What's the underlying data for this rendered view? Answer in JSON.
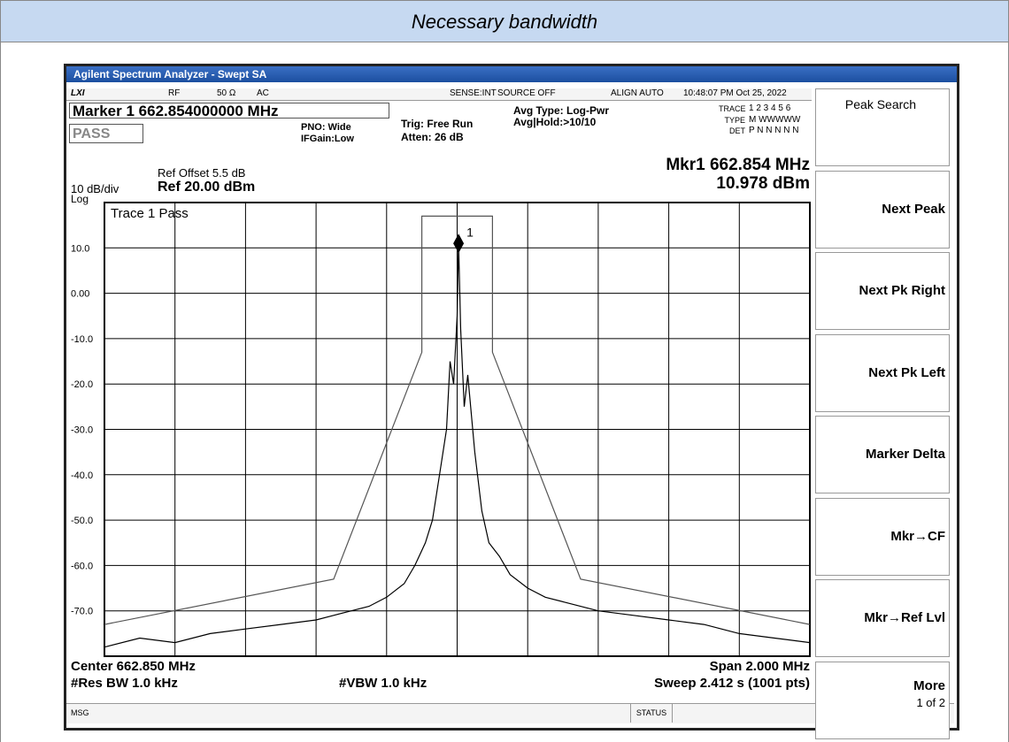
{
  "header": {
    "title": "Necessary bandwidth"
  },
  "screen": {
    "window_title": "Agilent Spectrum Analyzer - Swept SA",
    "status": [
      "LXI",
      "RF",
      "50 Ω",
      "AC",
      "SENSE:INT",
      "SOURCE OFF",
      "ALIGN AUTO",
      "10:48:07 PM Oct 25, 2022"
    ],
    "marker_line": "Marker 1 662.854000000 MHz",
    "pass": "PASS",
    "pno": "PNO: Wide",
    "ifgain": "IFGain:Low",
    "trig": "Trig: Free Run",
    "atten": "Atten: 26 dB",
    "avg_type": "Avg Type: Log-Pwr",
    "avg_hold": "Avg|Hold:>10/10",
    "trace_label": "TRACE",
    "trace_nums": "1 2 3 4 5 6",
    "type_label": "TYPE",
    "type_vals": "M WWWWW",
    "det_label": "DET",
    "det_vals": "P N N N N N",
    "ref_offset": "Ref Offset 5.5 dB",
    "scale": "10 dB/div",
    "ref": "Ref 20.00 dBm",
    "log": "Log",
    "mkr_freq": "Mkr1 662.854 MHz",
    "mkr_amp": "10.978 dBm",
    "trace_pass": "Trace 1 Pass",
    "center": "Center 662.850 MHz",
    "span": "Span 2.000 MHz",
    "rbw": "#Res BW 1.0 kHz",
    "vbw": "#VBW 1.0 kHz",
    "sweep": "Sweep  2.412 s (1001 pts)",
    "msg": "MSG",
    "status_label": "STATUS"
  },
  "softkeys": [
    "Peak Search",
    "Next Peak",
    "Next Pk Right",
    "Next Pk Left",
    "Marker Delta",
    "Mkr→CF",
    "Mkr→Ref Lvl",
    "More"
  ],
  "softkey_page": "1 of 2",
  "chart_data": {
    "type": "line",
    "xlim": [
      661.85,
      663.85
    ],
    "ylim": [
      -80,
      20
    ],
    "xticks": [
      661.85,
      662.05,
      662.25,
      662.45,
      662.65,
      662.85,
      663.05,
      663.25,
      663.45,
      663.65,
      663.85
    ],
    "yticks": [
      {
        "value": 10,
        "label": "10.0"
      },
      {
        "value": 0,
        "label": "0.00"
      },
      {
        "value": -10,
        "label": "-10.0"
      },
      {
        "value": -20,
        "label": "-20.0"
      },
      {
        "value": -30,
        "label": "-30.0"
      },
      {
        "value": -40,
        "label": "-40.0"
      },
      {
        "value": -50,
        "label": "-50.0"
      },
      {
        "value": -60,
        "label": "-60.0"
      },
      {
        "value": -70,
        "label": "-70.0"
      }
    ],
    "grid": true,
    "series": [
      {
        "color": "#555555",
        "x": [
          661.85,
          662.5,
          662.75,
          662.75,
          662.95,
          662.95,
          663.2,
          663.85
        ],
        "values": [
          -73,
          -63,
          -13,
          17,
          17,
          -13,
          -63,
          -73
        ]
      },
      {
        "color": "#000000",
        "x": [
          661.85,
          661.95,
          662.05,
          662.15,
          662.25,
          662.35,
          662.45,
          662.5,
          662.55,
          662.6,
          662.65,
          662.7,
          662.73,
          662.76,
          662.78,
          662.8,
          662.82,
          662.83,
          662.84,
          662.85,
          662.854,
          662.86,
          662.87,
          662.88,
          662.9,
          662.92,
          662.94,
          662.97,
          663.0,
          663.05,
          663.1,
          663.15,
          663.25,
          663.35,
          663.45,
          663.55,
          663.65,
          663.75,
          663.85
        ],
        "values": [
          -78,
          -76,
          -77,
          -75,
          -74,
          -73,
          -72,
          -71,
          -70,
          -69,
          -67,
          -64,
          -60,
          -55,
          -50,
          -40,
          -30,
          -15,
          -20,
          -5,
          10.978,
          -8,
          -25,
          -18,
          -35,
          -48,
          -55,
          -58,
          -62,
          -65,
          -67,
          -68,
          -70,
          -71,
          -72,
          -73,
          -75,
          -76,
          -77
        ]
      }
    ],
    "marker": {
      "x": 662.854,
      "value": 10.978,
      "label": "1"
    }
  }
}
